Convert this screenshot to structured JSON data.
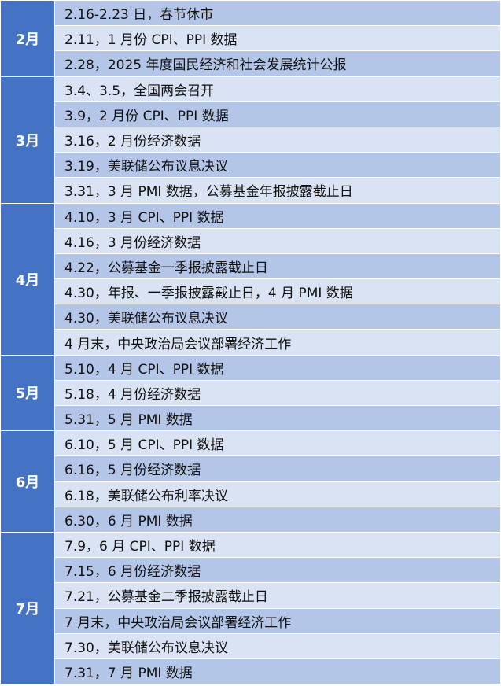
{
  "table": {
    "groups": [
      {
        "month": "2月",
        "items": [
          "2.16-2.23 日，春节休市",
          "2.11，1 月份 CPI、PPI 数据",
          "2.28，2025 年度国民经济和社会发展统计公报"
        ]
      },
      {
        "month": "3月",
        "items": [
          "3.4、3.5，全国两会召开",
          "3.9，2 月份 CPI、PPI 数据",
          "3.16，2 月份经济数据",
          "3.19，美联储公布议息决议",
          "3.31，3 月 PMI 数据，公募基金年报披露截止日"
        ]
      },
      {
        "month": "4月",
        "items": [
          "4.10，3 月 CPI、PPI 数据",
          "4.16，3 月份经济数据",
          "4.22，公募基金一季报披露截止日",
          "4.30，年报、一季报披露截止日，4 月 PMI 数据",
          "4.30，美联储公布议息决议",
          "4 月末，中央政治局会议部署经济工作"
        ]
      },
      {
        "month": "5月",
        "items": [
          "5.10，4 月 CPI、PPI 数据",
          "5.18，4 月份经济数据",
          "5.31，5 月 PMI 数据"
        ]
      },
      {
        "month": "6月",
        "items": [
          "6.10，5 月 CPI、PPI 数据",
          "6.16，5 月份经济数据",
          "6.18，美联储公布利率决议",
          "6.30，6 月 PMI 数据"
        ]
      },
      {
        "month": "7月",
        "items": [
          "7.9，6 月 CPI、PPI 数据",
          "7.15，6 月份经济数据",
          "7.21，公募基金二季报披露截止日",
          "7 月末，中央政治局会议部署经济工作",
          "7.30，美联储公布议息决议",
          "7.31，7 月 PMI 数据"
        ]
      }
    ]
  }
}
